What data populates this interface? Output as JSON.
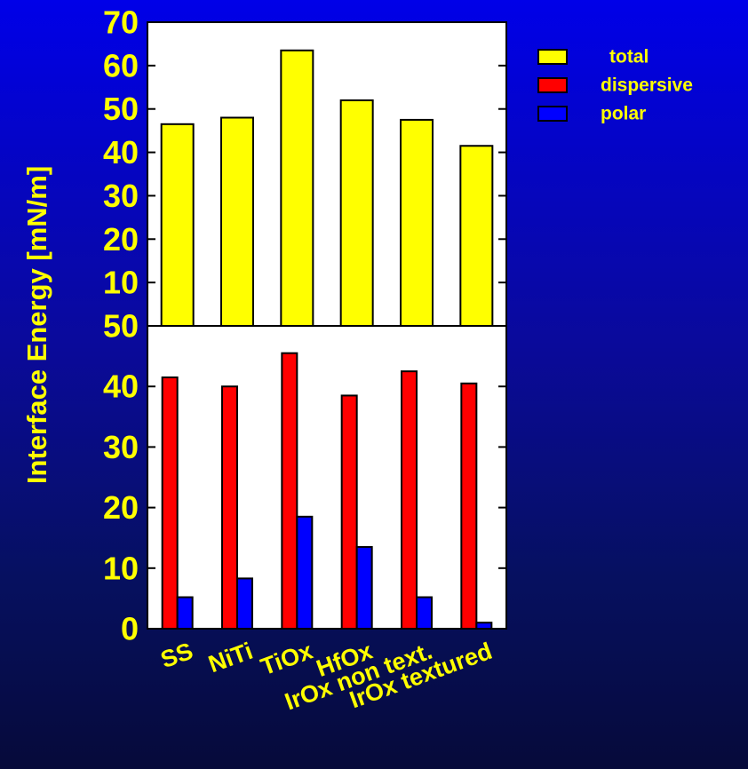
{
  "chart_data": {
    "type": "bar",
    "ylabel": "Interface Energy [mN/m]",
    "categories": [
      "SS",
      "NiTi",
      "TiOx",
      "HfOx",
      "IrOx non text.",
      "IrOx textured"
    ],
    "legend": {
      "placement": "top-right"
    },
    "colors": {
      "total": "#ffff00",
      "dispersive": "#ff0000",
      "polar": "#0000ff",
      "text": "#ffff00"
    },
    "legend_entries": [
      {
        "name": "total",
        "color": "#ffff00"
      },
      {
        "name": "dispersive",
        "color": "#ff0000"
      },
      {
        "name": "polar",
        "color": "#0000ff"
      }
    ],
    "panels": [
      {
        "ylim": [
          0,
          70
        ],
        "yticks": [
          "10",
          "20",
          "30",
          "40",
          "50",
          "60",
          "70"
        ],
        "series": [
          {
            "name": "total",
            "values": [
              46.5,
              48,
              63.5,
              52,
              47.5,
              41.5
            ]
          }
        ]
      },
      {
        "ylim": [
          0,
          50
        ],
        "yticks": [
          "0",
          "10",
          "20",
          "30",
          "40",
          "50"
        ],
        "series": [
          {
            "name": "dispersive",
            "values": [
              41.5,
              40,
              45.5,
              38.5,
              42.5,
              40.5
            ]
          },
          {
            "name": "polar",
            "values": [
              5.2,
              8.3,
              18.5,
              13.5,
              5.2,
              1.0
            ]
          }
        ]
      }
    ]
  }
}
